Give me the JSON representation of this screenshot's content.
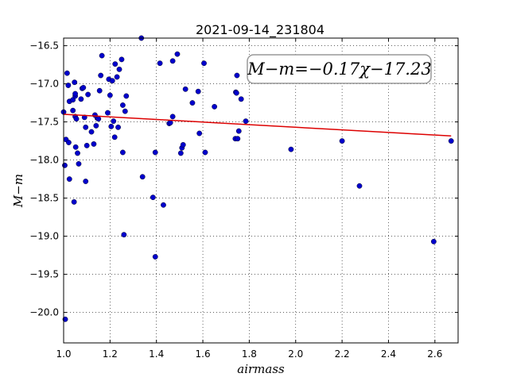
{
  "chart_data": {
    "type": "scatter",
    "title": "2021-09-14_231804",
    "xlabel": "airmass",
    "ylabel": "M−m",
    "annotation": "M−m=−0.17χ−17.23",
    "xlim": [
      1.0,
      2.7
    ],
    "ylim": [
      -20.4,
      -16.4
    ],
    "y_inverted": true,
    "grid": true,
    "x_ticks": [
      "1.0",
      "1.2",
      "1.4",
      "1.6",
      "1.8",
      "2.0",
      "2.2",
      "2.4",
      "2.6"
    ],
    "y_ticks": [
      "−16.5",
      "−17.0",
      "−17.5",
      "−18.0",
      "−18.5",
      "−19.0",
      "−19.5",
      "−20.0"
    ],
    "point_color": "#0000cc",
    "fit_color": "#dd0000",
    "fit": {
      "slope": -0.17,
      "intercept": -17.23,
      "x_range": [
        1.0,
        2.67
      ]
    },
    "points": [
      [
        1.0,
        -17.37
      ],
      [
        1.005,
        -18.07
      ],
      [
        1.007,
        -20.09
      ],
      [
        1.01,
        -17.73
      ],
      [
        1.015,
        -16.86
      ],
      [
        1.02,
        -17.02
      ],
      [
        1.022,
        -17.77
      ],
      [
        1.025,
        -18.25
      ],
      [
        1.025,
        -17.23
      ],
      [
        1.04,
        -17.35
      ],
      [
        1.04,
        -17.21
      ],
      [
        1.045,
        -18.55
      ],
      [
        1.047,
        -16.98
      ],
      [
        1.05,
        -17.16
      ],
      [
        1.05,
        -17.13
      ],
      [
        1.05,
        -17.43
      ],
      [
        1.052,
        -17.83
      ],
      [
        1.055,
        -17.46
      ],
      [
        1.06,
        -17.91
      ],
      [
        1.065,
        -18.05
      ],
      [
        1.075,
        -17.2
      ],
      [
        1.08,
        -17.06
      ],
      [
        1.085,
        -17.05
      ],
      [
        1.09,
        -17.44
      ],
      [
        1.095,
        -17.57
      ],
      [
        1.095,
        -18.28
      ],
      [
        1.1,
        -17.81
      ],
      [
        1.105,
        -17.14
      ],
      [
        1.12,
        -17.63
      ],
      [
        1.13,
        -17.79
      ],
      [
        1.135,
        -17.41
      ],
      [
        1.14,
        -17.55
      ],
      [
        1.145,
        -17.45
      ],
      [
        1.15,
        -17.46
      ],
      [
        1.155,
        -17.09
      ],
      [
        1.16,
        -16.89
      ],
      [
        1.165,
        -16.63
      ],
      [
        1.19,
        -17.38
      ],
      [
        1.195,
        -16.94
      ],
      [
        1.2,
        -17.15
      ],
      [
        1.205,
        -17.56
      ],
      [
        1.21,
        -16.96
      ],
      [
        1.215,
        -17.49
      ],
      [
        1.22,
        -17.7
      ],
      [
        1.222,
        -16.74
      ],
      [
        1.23,
        -16.91
      ],
      [
        1.235,
        -17.57
      ],
      [
        1.24,
        -16.81
      ],
      [
        1.25,
        -16.68
      ],
      [
        1.255,
        -17.28
      ],
      [
        1.255,
        -17.9
      ],
      [
        1.26,
        -18.98
      ],
      [
        1.265,
        -17.36
      ],
      [
        1.27,
        -17.16
      ],
      [
        1.335,
        -16.4
      ],
      [
        1.34,
        -18.22
      ],
      [
        1.385,
        -18.49
      ],
      [
        1.395,
        -17.9
      ],
      [
        1.395,
        -19.27
      ],
      [
        1.415,
        -16.73
      ],
      [
        1.43,
        -18.59
      ],
      [
        1.455,
        -17.52
      ],
      [
        1.46,
        -17.51
      ],
      [
        1.47,
        -16.7
      ],
      [
        1.47,
        -17.43
      ],
      [
        1.49,
        -16.61
      ],
      [
        1.505,
        -17.91
      ],
      [
        1.51,
        -17.84
      ],
      [
        1.515,
        -17.8
      ],
      [
        1.525,
        -17.07
      ],
      [
        1.555,
        -17.25
      ],
      [
        1.58,
        -17.1
      ],
      [
        1.585,
        -17.65
      ],
      [
        1.605,
        -16.73
      ],
      [
        1.61,
        -17.9
      ],
      [
        1.65,
        -17.3
      ],
      [
        1.74,
        -17.72
      ],
      [
        1.742,
        -17.11
      ],
      [
        1.745,
        -17.12
      ],
      [
        1.747,
        -16.89
      ],
      [
        1.75,
        -17.72
      ],
      [
        1.755,
        -17.62
      ],
      [
        1.765,
        -17.2
      ],
      [
        1.785,
        -17.49
      ],
      [
        1.98,
        -17.86
      ],
      [
        2.2,
        -17.75
      ],
      [
        2.275,
        -18.34
      ],
      [
        2.595,
        -19.07
      ],
      [
        2.67,
        -17.75
      ]
    ]
  }
}
